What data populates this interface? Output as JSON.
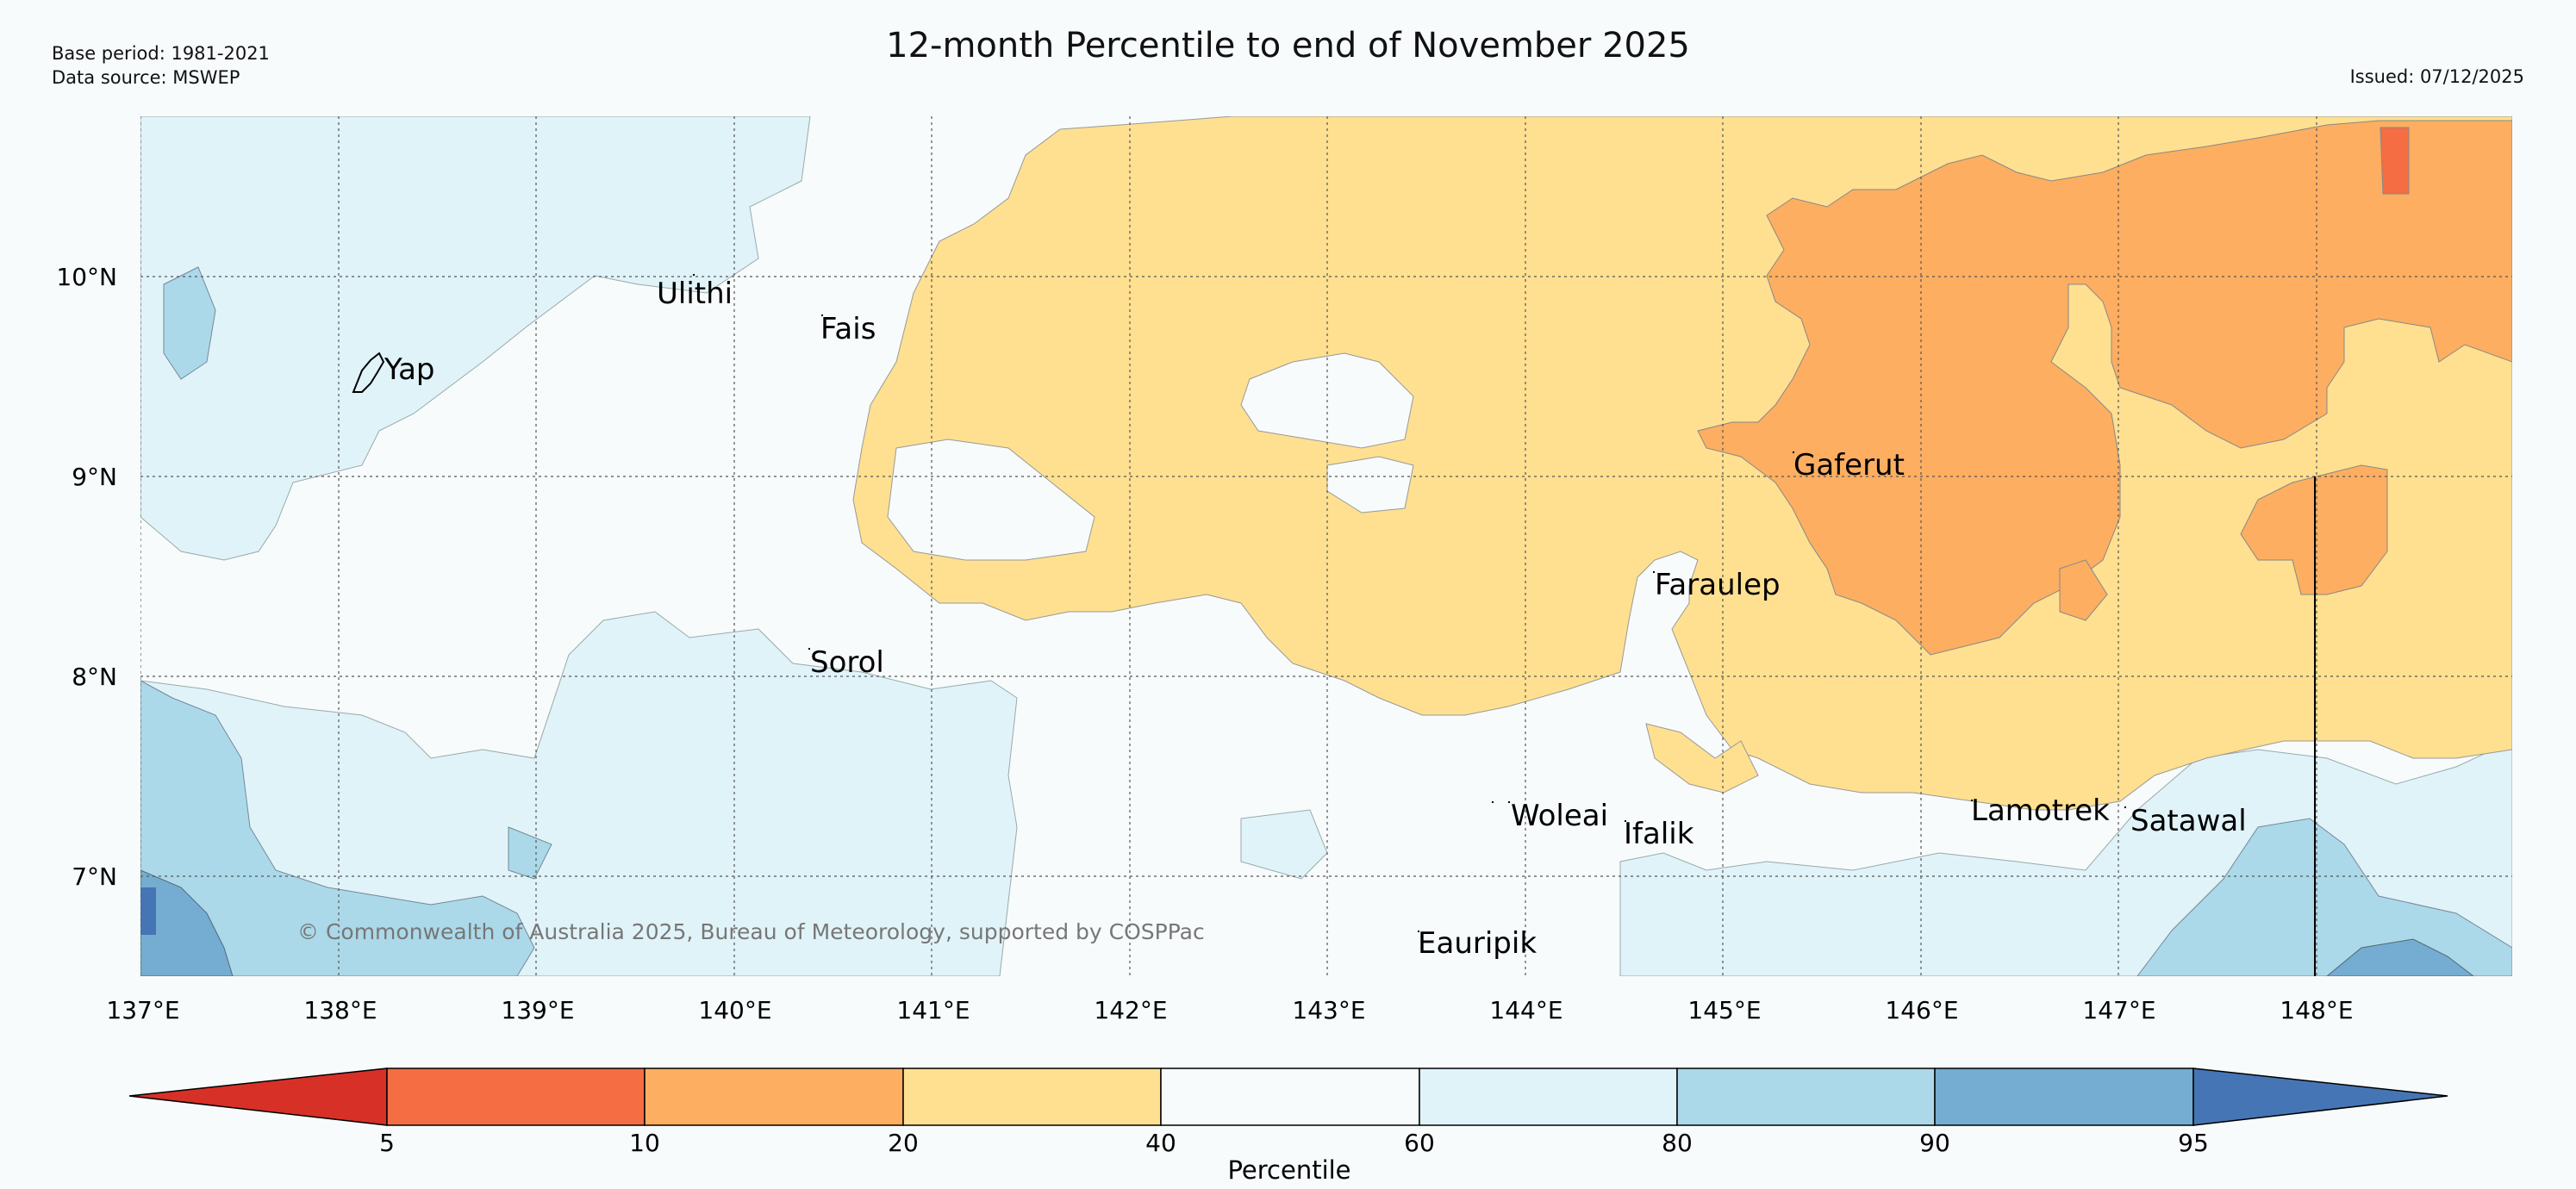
{
  "title": "12-month Percentile to end of November 2025",
  "meta": {
    "base_period": "Base period: 1981-2021",
    "data_source": "Data source: MSWEP",
    "issued": "Issued: 07/12/2025"
  },
  "copyright": "© Commonwealth of Australia 2025, Bureau of Meteorology, supported by COSPPac",
  "axes": {
    "lat_labels": [
      "10°N",
      "9°N",
      "8°N",
      "7°N"
    ],
    "lon_labels": [
      "137°E",
      "138°E",
      "139°E",
      "140°E",
      "141°E",
      "142°E",
      "143°E",
      "144°E",
      "145°E",
      "146°E",
      "147°E",
      "148°E"
    ]
  },
  "places": [
    {
      "name": "Yap"
    },
    {
      "name": "Ulithi"
    },
    {
      "name": "Fais"
    },
    {
      "name": "Gaferut"
    },
    {
      "name": "Faraulep"
    },
    {
      "name": "Sorol"
    },
    {
      "name": "Woleai"
    },
    {
      "name": "Ifalik"
    },
    {
      "name": "Lamotrek"
    },
    {
      "name": "Satawal"
    },
    {
      "name": "Eauripik"
    }
  ],
  "legend": {
    "label": "Percentile",
    "ticks": [
      "5",
      "10",
      "20",
      "40",
      "60",
      "80",
      "90",
      "95"
    ],
    "colors": [
      "#d73027",
      "#f46d43",
      "#fdae61",
      "#fee090",
      "#f7fbfc",
      "#e0f3f8",
      "#abd9e9",
      "#74add1",
      "#4575b4"
    ]
  }
}
